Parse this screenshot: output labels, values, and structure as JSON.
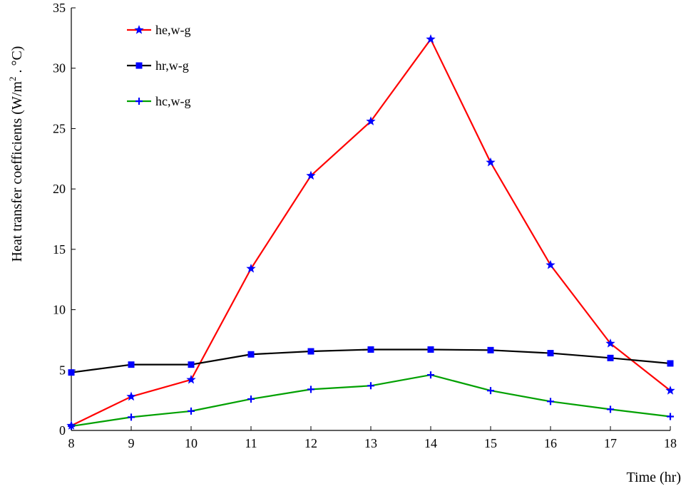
{
  "chart_data": {
    "type": "line",
    "title": "",
    "xlabel": "Time (hr)",
    "ylabel": "Heat transfer coefficients (W/m² . °C)",
    "ylabel_parts": {
      "main": "Heat transfer coefficients (W/m",
      "sup": "2",
      "tail": " . °C)"
    },
    "x": [
      8,
      9,
      10,
      11,
      12,
      13,
      14,
      15,
      16,
      17,
      18
    ],
    "xlim": [
      8,
      18
    ],
    "ylim": [
      0,
      35
    ],
    "xticks": [
      "8",
      "9",
      "10",
      "11",
      "12",
      "13",
      "14",
      "15",
      "16",
      "17",
      "18"
    ],
    "yticks": [
      "0",
      "5",
      "10",
      "15",
      "20",
      "25",
      "30",
      "35"
    ],
    "grid": false,
    "legend_position": "top-left",
    "series": [
      {
        "name": "he,w-g",
        "color": "#ff0000",
        "marker": "star",
        "marker_color": "#0000ff",
        "values": [
          0.4,
          2.8,
          4.2,
          13.4,
          21.1,
          25.6,
          32.4,
          22.2,
          13.7,
          7.2,
          3.3
        ]
      },
      {
        "name": "hr,w-g",
        "color": "#000000",
        "marker": "square",
        "marker_color": "#0000ff",
        "values": [
          4.8,
          5.45,
          5.45,
          6.3,
          6.55,
          6.7,
          6.7,
          6.65,
          6.4,
          6.0,
          5.55
        ]
      },
      {
        "name": "hc,w-g",
        "color": "#00a000",
        "marker": "plus",
        "marker_color": "#0000ff",
        "values": [
          0.35,
          1.1,
          1.6,
          2.6,
          3.4,
          3.7,
          4.6,
          3.3,
          2.4,
          1.75,
          1.15
        ]
      }
    ]
  }
}
